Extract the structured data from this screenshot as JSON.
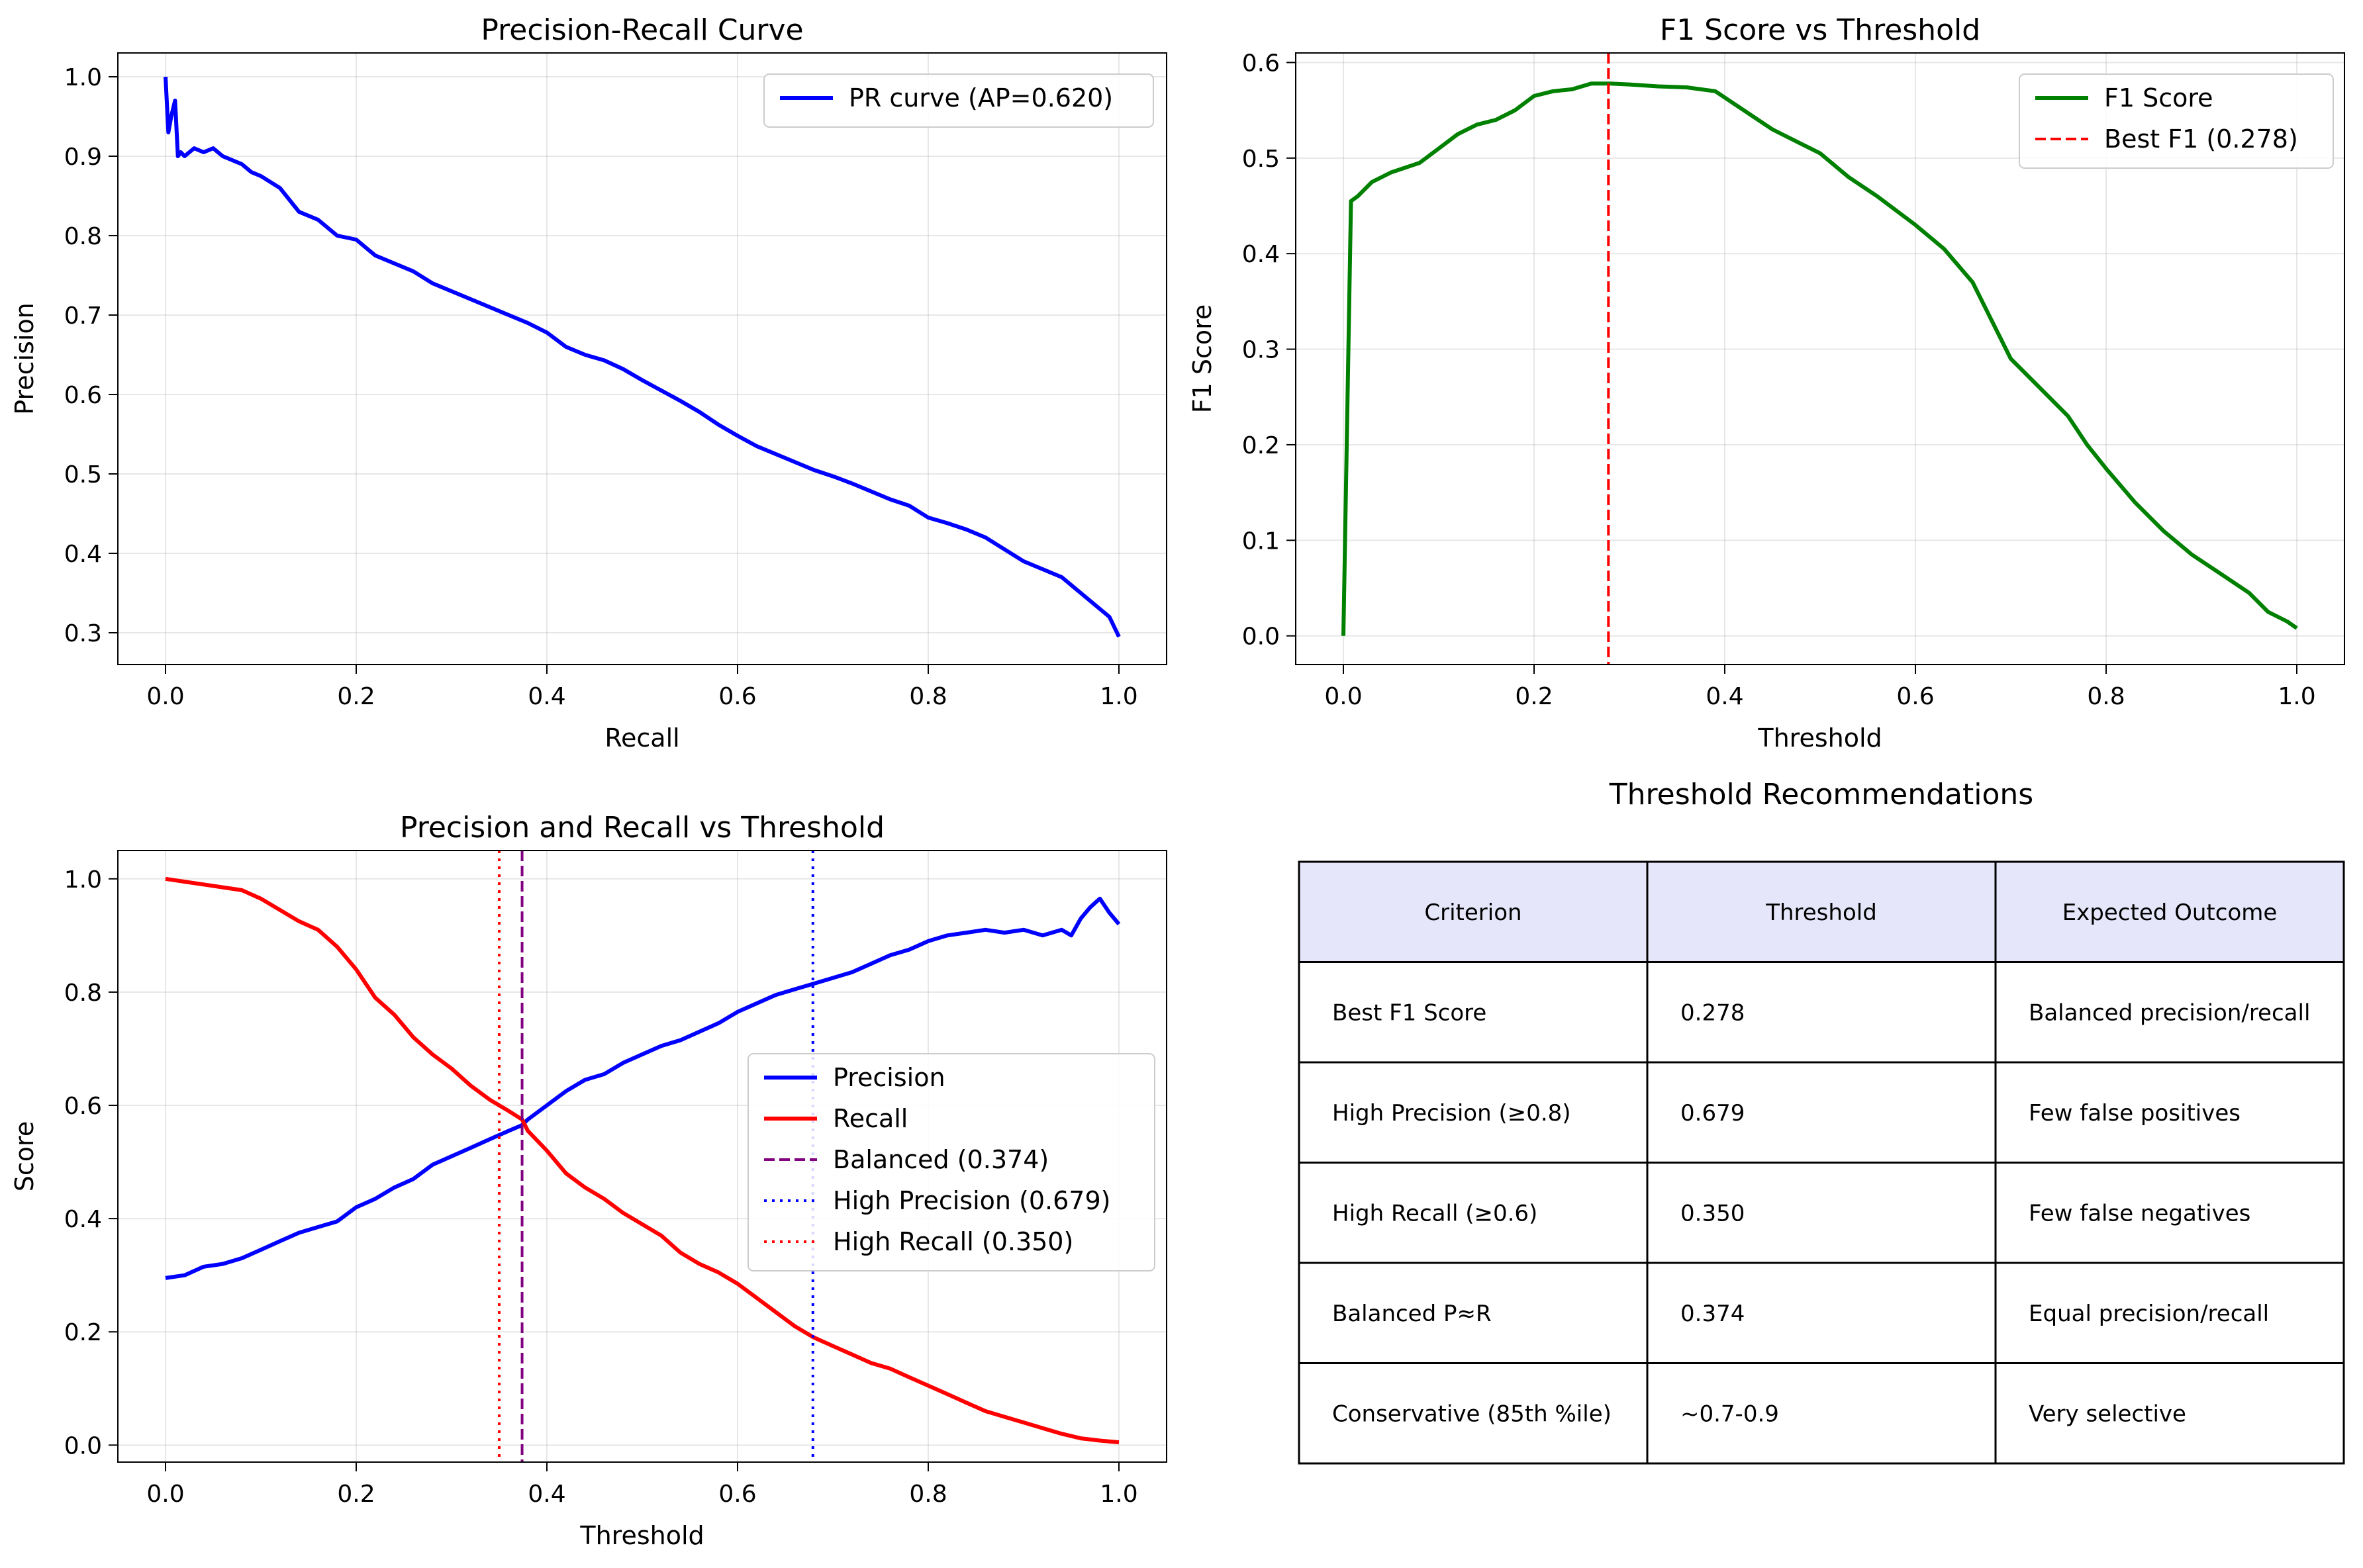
{
  "chart_data": [
    {
      "id": "pr",
      "type": "line",
      "title": "Precision-Recall Curve",
      "xlabel": "Recall",
      "ylabel": "Precision",
      "xlim": [
        -0.05,
        1.05
      ],
      "ylim": [
        0.26,
        1.03
      ],
      "xticks": [
        0.0,
        0.2,
        0.4,
        0.6,
        0.8,
        1.0
      ],
      "xtick_labels": [
        "0.0",
        "0.2",
        "0.4",
        "0.6",
        "0.8",
        "1.0"
      ],
      "yticks": [
        0.3,
        0.4,
        0.5,
        0.6,
        0.7,
        0.8,
        0.9,
        1.0
      ],
      "ytick_labels": [
        "0.3",
        "0.4",
        "0.5",
        "0.6",
        "0.7",
        "0.8",
        "0.9",
        "1.0"
      ],
      "grid": true,
      "legend": "upper right",
      "series": [
        {
          "name": "PR curve (AP=0.620)",
          "color": "#0000ff",
          "style": "solid",
          "x": [
            0.0,
            0.003,
            0.006,
            0.01,
            0.013,
            0.016,
            0.02,
            0.03,
            0.04,
            0.05,
            0.06,
            0.07,
            0.08,
            0.09,
            0.1,
            0.12,
            0.14,
            0.15,
            0.16,
            0.17,
            0.18,
            0.2,
            0.22,
            0.23,
            0.24,
            0.26,
            0.28,
            0.3,
            0.32,
            0.34,
            0.36,
            0.38,
            0.4,
            0.42,
            0.44,
            0.46,
            0.48,
            0.5,
            0.52,
            0.54,
            0.56,
            0.58,
            0.6,
            0.62,
            0.64,
            0.66,
            0.68,
            0.7,
            0.72,
            0.74,
            0.76,
            0.78,
            0.8,
            0.82,
            0.84,
            0.86,
            0.88,
            0.9,
            0.92,
            0.94,
            0.96,
            0.97,
            0.98,
            0.99,
            1.0
          ],
          "y": [
            1.0,
            0.93,
            0.95,
            0.97,
            0.9,
            0.905,
            0.9,
            0.91,
            0.905,
            0.91,
            0.9,
            0.895,
            0.89,
            0.88,
            0.875,
            0.86,
            0.83,
            0.825,
            0.82,
            0.81,
            0.8,
            0.795,
            0.775,
            0.77,
            0.765,
            0.755,
            0.74,
            0.73,
            0.72,
            0.71,
            0.7,
            0.69,
            0.678,
            0.66,
            0.65,
            0.643,
            0.632,
            0.618,
            0.605,
            0.592,
            0.578,
            0.562,
            0.548,
            0.535,
            0.525,
            0.515,
            0.505,
            0.497,
            0.488,
            0.478,
            0.468,
            0.46,
            0.445,
            0.438,
            0.43,
            0.42,
            0.405,
            0.39,
            0.38,
            0.37,
            0.35,
            0.34,
            0.33,
            0.32,
            0.295
          ]
        }
      ]
    },
    {
      "id": "f1",
      "type": "line",
      "title": "F1 Score vs Threshold",
      "xlabel": "Threshold",
      "ylabel": "F1 Score",
      "xlim": [
        -0.05,
        1.05
      ],
      "ylim": [
        -0.03,
        0.61
      ],
      "xticks": [
        0.0,
        0.2,
        0.4,
        0.6,
        0.8,
        1.0
      ],
      "xtick_labels": [
        "0.0",
        "0.2",
        "0.4",
        "0.6",
        "0.8",
        "1.0"
      ],
      "yticks": [
        0.0,
        0.1,
        0.2,
        0.3,
        0.4,
        0.5,
        0.6
      ],
      "ytick_labels": [
        "0.0",
        "0.1",
        "0.2",
        "0.3",
        "0.4",
        "0.5",
        "0.6"
      ],
      "grid": true,
      "legend": "upper right",
      "series": [
        {
          "name": "F1 Score",
          "color": "#008000",
          "style": "solid",
          "x": [
            0.0,
            0.008,
            0.015,
            0.03,
            0.05,
            0.08,
            0.1,
            0.12,
            0.14,
            0.16,
            0.18,
            0.2,
            0.22,
            0.24,
            0.26,
            0.28,
            0.3,
            0.33,
            0.36,
            0.39,
            0.42,
            0.45,
            0.48,
            0.5,
            0.53,
            0.56,
            0.6,
            0.63,
            0.66,
            0.68,
            0.7,
            0.73,
            0.76,
            0.78,
            0.8,
            0.83,
            0.86,
            0.89,
            0.92,
            0.95,
            0.97,
            0.99,
            1.0
          ],
          "y": [
            0.0,
            0.455,
            0.46,
            0.475,
            0.485,
            0.495,
            0.51,
            0.525,
            0.535,
            0.54,
            0.55,
            0.565,
            0.57,
            0.572,
            0.578,
            0.578,
            0.577,
            0.575,
            0.574,
            0.57,
            0.55,
            0.53,
            0.515,
            0.505,
            0.48,
            0.46,
            0.43,
            0.405,
            0.37,
            0.33,
            0.29,
            0.26,
            0.23,
            0.2,
            0.175,
            0.14,
            0.11,
            0.085,
            0.065,
            0.045,
            0.025,
            0.015,
            0.008
          ]
        },
        {
          "name": "Best F1 (0.278)",
          "color": "#ff0000",
          "style": "dashed",
          "vline": 0.278
        }
      ]
    },
    {
      "id": "prt",
      "type": "line",
      "title": "Precision and Recall vs Threshold",
      "xlabel": "Threshold",
      "ylabel": "Score",
      "xlim": [
        -0.05,
        1.05
      ],
      "ylim": [
        -0.03,
        1.05
      ],
      "xticks": [
        0.0,
        0.2,
        0.4,
        0.6,
        0.8,
        1.0
      ],
      "xtick_labels": [
        "0.0",
        "0.2",
        "0.4",
        "0.6",
        "0.8",
        "1.0"
      ],
      "yticks": [
        0.0,
        0.2,
        0.4,
        0.6,
        0.8,
        1.0
      ],
      "ytick_labels": [
        "0.0",
        "0.2",
        "0.4",
        "0.6",
        "0.8",
        "1.0"
      ],
      "grid": true,
      "legend": "center right",
      "series": [
        {
          "name": "Precision",
          "color": "#0000ff",
          "style": "solid",
          "x": [
            0.0,
            0.02,
            0.04,
            0.06,
            0.08,
            0.1,
            0.12,
            0.14,
            0.16,
            0.18,
            0.2,
            0.22,
            0.24,
            0.26,
            0.28,
            0.3,
            0.32,
            0.34,
            0.36,
            0.374,
            0.38,
            0.4,
            0.42,
            0.44,
            0.46,
            0.48,
            0.5,
            0.52,
            0.54,
            0.56,
            0.58,
            0.6,
            0.62,
            0.64,
            0.66,
            0.68,
            0.7,
            0.72,
            0.74,
            0.76,
            0.78,
            0.8,
            0.82,
            0.84,
            0.86,
            0.88,
            0.9,
            0.92,
            0.94,
            0.95,
            0.96,
            0.97,
            0.98,
            0.99,
            1.0
          ],
          "y": [
            0.295,
            0.3,
            0.315,
            0.32,
            0.33,
            0.345,
            0.36,
            0.375,
            0.385,
            0.395,
            0.42,
            0.435,
            0.455,
            0.47,
            0.495,
            0.51,
            0.525,
            0.54,
            0.555,
            0.565,
            0.575,
            0.6,
            0.625,
            0.645,
            0.655,
            0.675,
            0.69,
            0.705,
            0.715,
            0.73,
            0.745,
            0.765,
            0.78,
            0.795,
            0.805,
            0.815,
            0.825,
            0.835,
            0.85,
            0.865,
            0.875,
            0.89,
            0.9,
            0.905,
            0.91,
            0.905,
            0.91,
            0.9,
            0.91,
            0.9,
            0.93,
            0.95,
            0.965,
            0.94,
            0.92
          ]
        },
        {
          "name": "Recall",
          "color": "#ff0000",
          "style": "solid",
          "x": [
            0.0,
            0.02,
            0.04,
            0.06,
            0.08,
            0.1,
            0.12,
            0.14,
            0.16,
            0.18,
            0.2,
            0.22,
            0.24,
            0.26,
            0.28,
            0.3,
            0.32,
            0.34,
            0.36,
            0.374,
            0.38,
            0.4,
            0.42,
            0.44,
            0.46,
            0.48,
            0.5,
            0.52,
            0.54,
            0.56,
            0.58,
            0.6,
            0.62,
            0.64,
            0.66,
            0.68,
            0.7,
            0.72,
            0.74,
            0.76,
            0.78,
            0.8,
            0.82,
            0.84,
            0.86,
            0.88,
            0.9,
            0.92,
            0.94,
            0.96,
            0.98,
            1.0
          ],
          "y": [
            1.0,
            0.995,
            0.99,
            0.985,
            0.98,
            0.965,
            0.945,
            0.925,
            0.91,
            0.88,
            0.84,
            0.79,
            0.76,
            0.72,
            0.69,
            0.665,
            0.635,
            0.61,
            0.59,
            0.575,
            0.555,
            0.52,
            0.48,
            0.455,
            0.435,
            0.41,
            0.39,
            0.37,
            0.34,
            0.32,
            0.305,
            0.285,
            0.26,
            0.235,
            0.21,
            0.19,
            0.175,
            0.16,
            0.145,
            0.135,
            0.12,
            0.105,
            0.09,
            0.075,
            0.06,
            0.05,
            0.04,
            0.03,
            0.02,
            0.012,
            0.008,
            0.005
          ]
        },
        {
          "name": "Balanced (0.374)",
          "color": "#800080",
          "style": "dashed",
          "vline": 0.374
        },
        {
          "name": "High Precision (0.679)",
          "color": "#0000ff",
          "style": "dotted",
          "vline": 0.679
        },
        {
          "name": "High Recall (0.350)",
          "color": "#ff0000",
          "style": "dotted",
          "vline": 0.35
        }
      ]
    },
    {
      "id": "table",
      "type": "table",
      "title": "Threshold Recommendations",
      "header_color": "#e6e6fa",
      "columns": [
        "Criterion",
        "Threshold",
        "Expected Outcome"
      ],
      "rows": [
        [
          "Best F1 Score",
          "0.278",
          "Balanced precision/recall"
        ],
        [
          "High Precision (≥0.8)",
          "0.679",
          "Few false positives"
        ],
        [
          "High Recall (≥0.6)",
          "0.350",
          "Few false negatives"
        ],
        [
          "Balanced P≈R",
          "0.374",
          "Equal precision/recall"
        ],
        [
          "Conservative (85th %ile)",
          "~0.7-0.9",
          "Very selective"
        ]
      ]
    }
  ]
}
